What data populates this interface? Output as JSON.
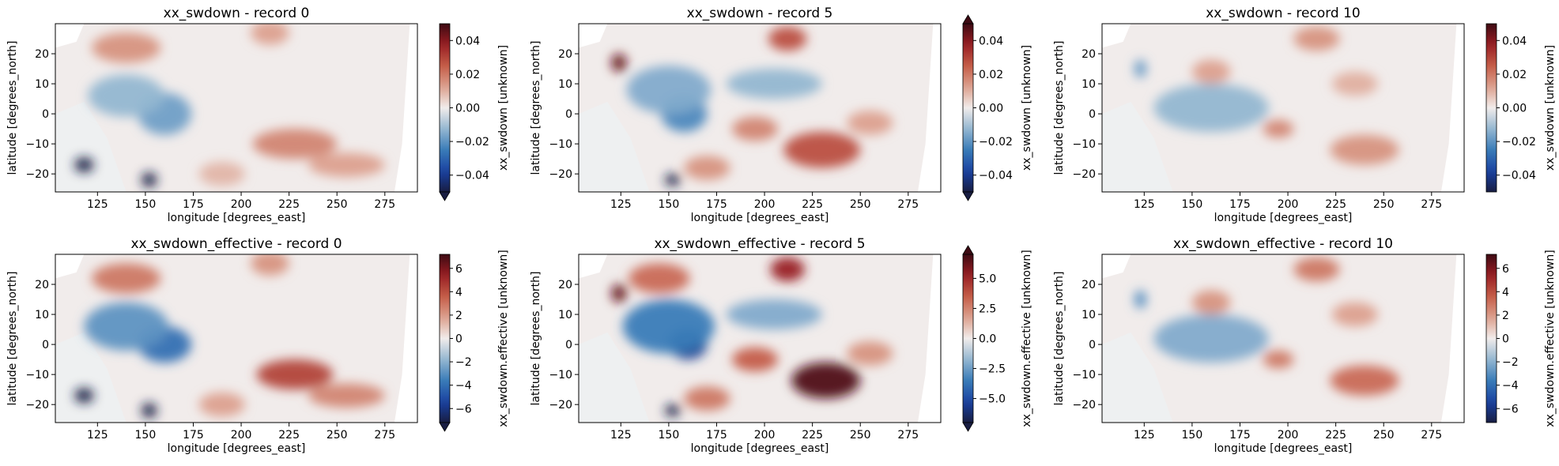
{
  "chart_data": [
    {
      "type": "heatmap",
      "title": "xx_swdown - record 0",
      "xlabel": "longitude [degrees_east]",
      "ylabel": "latitude [degrees_north]",
      "xlim": [
        103,
        292
      ],
      "ylim": [
        -26,
        30
      ],
      "xticks": [
        "125",
        "150",
        "175",
        "200",
        "225",
        "250",
        "275"
      ],
      "yticks": [
        "20",
        "10",
        "0",
        "−10",
        "−20"
      ],
      "colorbar": {
        "label": "xx_swdown [unknown]",
        "min": -0.05,
        "max": 0.05,
        "ticks": [
          "0.04",
          "0.02",
          "0.00",
          "−0.02",
          "−0.04"
        ],
        "extend": "min"
      },
      "features": [
        {
          "lon": 118,
          "lat": -17,
          "value": -1.0,
          "sx": 5,
          "sy": 2.5
        },
        {
          "lon": 152,
          "lat": -22,
          "value": -1.0,
          "sx": 4,
          "sy": 2.5
        },
        {
          "lon": 160,
          "lat": 0,
          "value": -0.35,
          "sx": 14,
          "sy": 7
        },
        {
          "lon": 140,
          "lat": 6,
          "value": -0.25,
          "sx": 20,
          "sy": 7
        },
        {
          "lon": 140,
          "lat": 22,
          "value": 0.3,
          "sx": 18,
          "sy": 5
        },
        {
          "lon": 215,
          "lat": 27,
          "value": 0.25,
          "sx": 10,
          "sy": 4
        },
        {
          "lon": 228,
          "lat": -10,
          "value": 0.35,
          "sx": 22,
          "sy": 5
        },
        {
          "lon": 255,
          "lat": -17,
          "value": 0.25,
          "sx": 20,
          "sy": 4
        },
        {
          "lon": 190,
          "lat": -20,
          "value": 0.18,
          "sx": 12,
          "sy": 4
        }
      ]
    },
    {
      "type": "heatmap",
      "title": "xx_swdown - record 5",
      "xlabel": "longitude [degrees_east]",
      "ylabel": "latitude [degrees_north]",
      "xlim": [
        103,
        292
      ],
      "ylim": [
        -26,
        30
      ],
      "xticks": [
        "125",
        "150",
        "175",
        "200",
        "225",
        "250",
        "275"
      ],
      "yticks": [
        "20",
        "10",
        "0",
        "−10",
        "−20"
      ],
      "colorbar": {
        "label": "xx_swdown [unknown]",
        "min": -0.05,
        "max": 0.05,
        "ticks": [
          "0.04",
          "0.02",
          "0.00",
          "−0.02",
          "−0.04"
        ],
        "extend": "both"
      },
      "features": [
        {
          "lon": 124,
          "lat": 17,
          "value": 0.9,
          "sx": 4,
          "sy": 3
        },
        {
          "lon": 152,
          "lat": -22,
          "value": -1.0,
          "sx": 4,
          "sy": 2
        },
        {
          "lon": 158,
          "lat": 0,
          "value": -0.45,
          "sx": 12,
          "sy": 6
        },
        {
          "lon": 150,
          "lat": 8,
          "value": -0.3,
          "sx": 22,
          "sy": 8
        },
        {
          "lon": 212,
          "lat": 25,
          "value": 0.55,
          "sx": 10,
          "sy": 4
        },
        {
          "lon": 230,
          "lat": -12,
          "value": 0.55,
          "sx": 20,
          "sy": 6
        },
        {
          "lon": 195,
          "lat": -5,
          "value": 0.35,
          "sx": 12,
          "sy": 4
        },
        {
          "lon": 170,
          "lat": -18,
          "value": 0.3,
          "sx": 12,
          "sy": 4
        },
        {
          "lon": 255,
          "lat": -3,
          "value": 0.25,
          "sx": 12,
          "sy": 4
        },
        {
          "lon": 205,
          "lat": 10,
          "value": -0.25,
          "sx": 25,
          "sy": 5
        }
      ]
    },
    {
      "type": "heatmap",
      "title": "xx_swdown - record 10",
      "xlabel": "longitude [degrees_east]",
      "ylabel": "latitude [degrees_north]",
      "xlim": [
        103,
        292
      ],
      "ylim": [
        -26,
        30
      ],
      "xticks": [
        "125",
        "150",
        "175",
        "200",
        "225",
        "250",
        "275"
      ],
      "yticks": [
        "20",
        "10",
        "0",
        "−10",
        "−20"
      ],
      "colorbar": {
        "label": "xx_swdown [unknown]",
        "min": -0.05,
        "max": 0.05,
        "ticks": [
          "0.04",
          "0.02",
          "0.00",
          "−0.02",
          "−0.04"
        ],
        "extend": "none"
      },
      "features": [
        {
          "lon": 123,
          "lat": 15,
          "value": -0.4,
          "sx": 3,
          "sy": 3
        },
        {
          "lon": 160,
          "lat": 2,
          "value": -0.25,
          "sx": 30,
          "sy": 8
        },
        {
          "lon": 215,
          "lat": 25,
          "value": 0.3,
          "sx": 12,
          "sy": 4
        },
        {
          "lon": 160,
          "lat": 14,
          "value": 0.25,
          "sx": 10,
          "sy": 4
        },
        {
          "lon": 195,
          "lat": -5,
          "value": 0.35,
          "sx": 8,
          "sy": 3
        },
        {
          "lon": 240,
          "lat": -12,
          "value": 0.3,
          "sx": 18,
          "sy": 5
        },
        {
          "lon": 235,
          "lat": 10,
          "value": 0.2,
          "sx": 12,
          "sy": 4
        }
      ]
    },
    {
      "type": "heatmap",
      "title": "xx_swdown_effective - record 0",
      "xlabel": "longitude [degrees_east]",
      "ylabel": "latitude [degrees_north]",
      "xlim": [
        103,
        292
      ],
      "ylim": [
        -26,
        30
      ],
      "xticks": [
        "125",
        "150",
        "175",
        "200",
        "225",
        "250",
        "275"
      ],
      "yticks": [
        "20",
        "10",
        "0",
        "−10",
        "−20"
      ],
      "colorbar": {
        "label": "xx_swdown.effective [unknown]",
        "min": -7.2,
        "max": 7.2,
        "ticks": [
          "6",
          "4",
          "2",
          "0",
          "−2",
          "−4",
          "−6"
        ],
        "extend": "min"
      },
      "features": [
        {
          "lon": 118,
          "lat": -17,
          "value": -1.0,
          "sx": 5,
          "sy": 2.5
        },
        {
          "lon": 152,
          "lat": -22,
          "value": -1.0,
          "sx": 4,
          "sy": 2.5
        },
        {
          "lon": 160,
          "lat": 0,
          "value": -0.55,
          "sx": 14,
          "sy": 6
        },
        {
          "lon": 140,
          "lat": 6,
          "value": -0.4,
          "sx": 22,
          "sy": 8
        },
        {
          "lon": 140,
          "lat": 22,
          "value": 0.4,
          "sx": 18,
          "sy": 5
        },
        {
          "lon": 215,
          "lat": 27,
          "value": 0.3,
          "sx": 10,
          "sy": 4
        },
        {
          "lon": 228,
          "lat": -10,
          "value": 0.6,
          "sx": 20,
          "sy": 5
        },
        {
          "lon": 255,
          "lat": -17,
          "value": 0.35,
          "sx": 20,
          "sy": 4
        },
        {
          "lon": 190,
          "lat": -20,
          "value": 0.25,
          "sx": 12,
          "sy": 4
        }
      ]
    },
    {
      "type": "heatmap",
      "title": "xx_swdown_effective - record 5",
      "xlabel": "longitude [degrees_east]",
      "ylabel": "latitude [degrees_north]",
      "xlim": [
        103,
        292
      ],
      "ylim": [
        -26,
        30
      ],
      "xticks": [
        "125",
        "150",
        "175",
        "200",
        "225",
        "250",
        "275"
      ],
      "yticks": [
        "20",
        "10",
        "0",
        "−10",
        "−20"
      ],
      "colorbar": {
        "label": "xx_swdown.effective [unknown]",
        "min": -7.0,
        "max": 7.0,
        "ticks": [
          "5.0",
          "2.5",
          "0.0",
          "−2.5",
          "−5.0"
        ],
        "extend": "both"
      },
      "features": [
        {
          "lon": 124,
          "lat": 17,
          "value": 0.9,
          "sx": 4,
          "sy": 3
        },
        {
          "lon": 152,
          "lat": -22,
          "value": -1.0,
          "sx": 4,
          "sy": 2
        },
        {
          "lon": 160,
          "lat": 0,
          "value": -0.8,
          "sx": 10,
          "sy": 5
        },
        {
          "lon": 150,
          "lat": 6,
          "value": -0.5,
          "sx": 24,
          "sy": 9
        },
        {
          "lon": 212,
          "lat": 25,
          "value": 0.75,
          "sx": 9,
          "sy": 4
        },
        {
          "lon": 232,
          "lat": -12,
          "value": 0.95,
          "sx": 18,
          "sy": 6
        },
        {
          "lon": 195,
          "lat": -5,
          "value": 0.5,
          "sx": 12,
          "sy": 4
        },
        {
          "lon": 170,
          "lat": -18,
          "value": 0.4,
          "sx": 12,
          "sy": 4
        },
        {
          "lon": 145,
          "lat": 22,
          "value": 0.45,
          "sx": 16,
          "sy": 5
        },
        {
          "lon": 255,
          "lat": -3,
          "value": 0.3,
          "sx": 12,
          "sy": 4
        },
        {
          "lon": 205,
          "lat": 10,
          "value": -0.3,
          "sx": 25,
          "sy": 5
        }
      ]
    },
    {
      "type": "heatmap",
      "title": "xx_swdown_effective - record 10",
      "xlabel": "longitude [degrees_east]",
      "ylabel": "latitude [degrees_north]",
      "xlim": [
        103,
        292
      ],
      "ylim": [
        -26,
        30
      ],
      "xticks": [
        "125",
        "150",
        "175",
        "200",
        "225",
        "250",
        "275"
      ],
      "yticks": [
        "20",
        "10",
        "0",
        "−10",
        "−20"
      ],
      "colorbar": {
        "label": "xx_swdown.effective [unknown]",
        "min": -7.2,
        "max": 7.2,
        "ticks": [
          "6",
          "4",
          "2",
          "0",
          "−2",
          "−4",
          "−6"
        ],
        "extend": "none"
      },
      "features": [
        {
          "lon": 123,
          "lat": 15,
          "value": -0.45,
          "sx": 3,
          "sy": 3
        },
        {
          "lon": 160,
          "lat": 2,
          "value": -0.3,
          "sx": 30,
          "sy": 8
        },
        {
          "lon": 215,
          "lat": 25,
          "value": 0.4,
          "sx": 12,
          "sy": 4
        },
        {
          "lon": 160,
          "lat": 14,
          "value": 0.3,
          "sx": 10,
          "sy": 4
        },
        {
          "lon": 195,
          "lat": -5,
          "value": 0.4,
          "sx": 8,
          "sy": 3
        },
        {
          "lon": 240,
          "lat": -12,
          "value": 0.45,
          "sx": 18,
          "sy": 5
        },
        {
          "lon": 235,
          "lat": 10,
          "value": 0.25,
          "sx": 12,
          "sy": 4
        }
      ]
    }
  ]
}
